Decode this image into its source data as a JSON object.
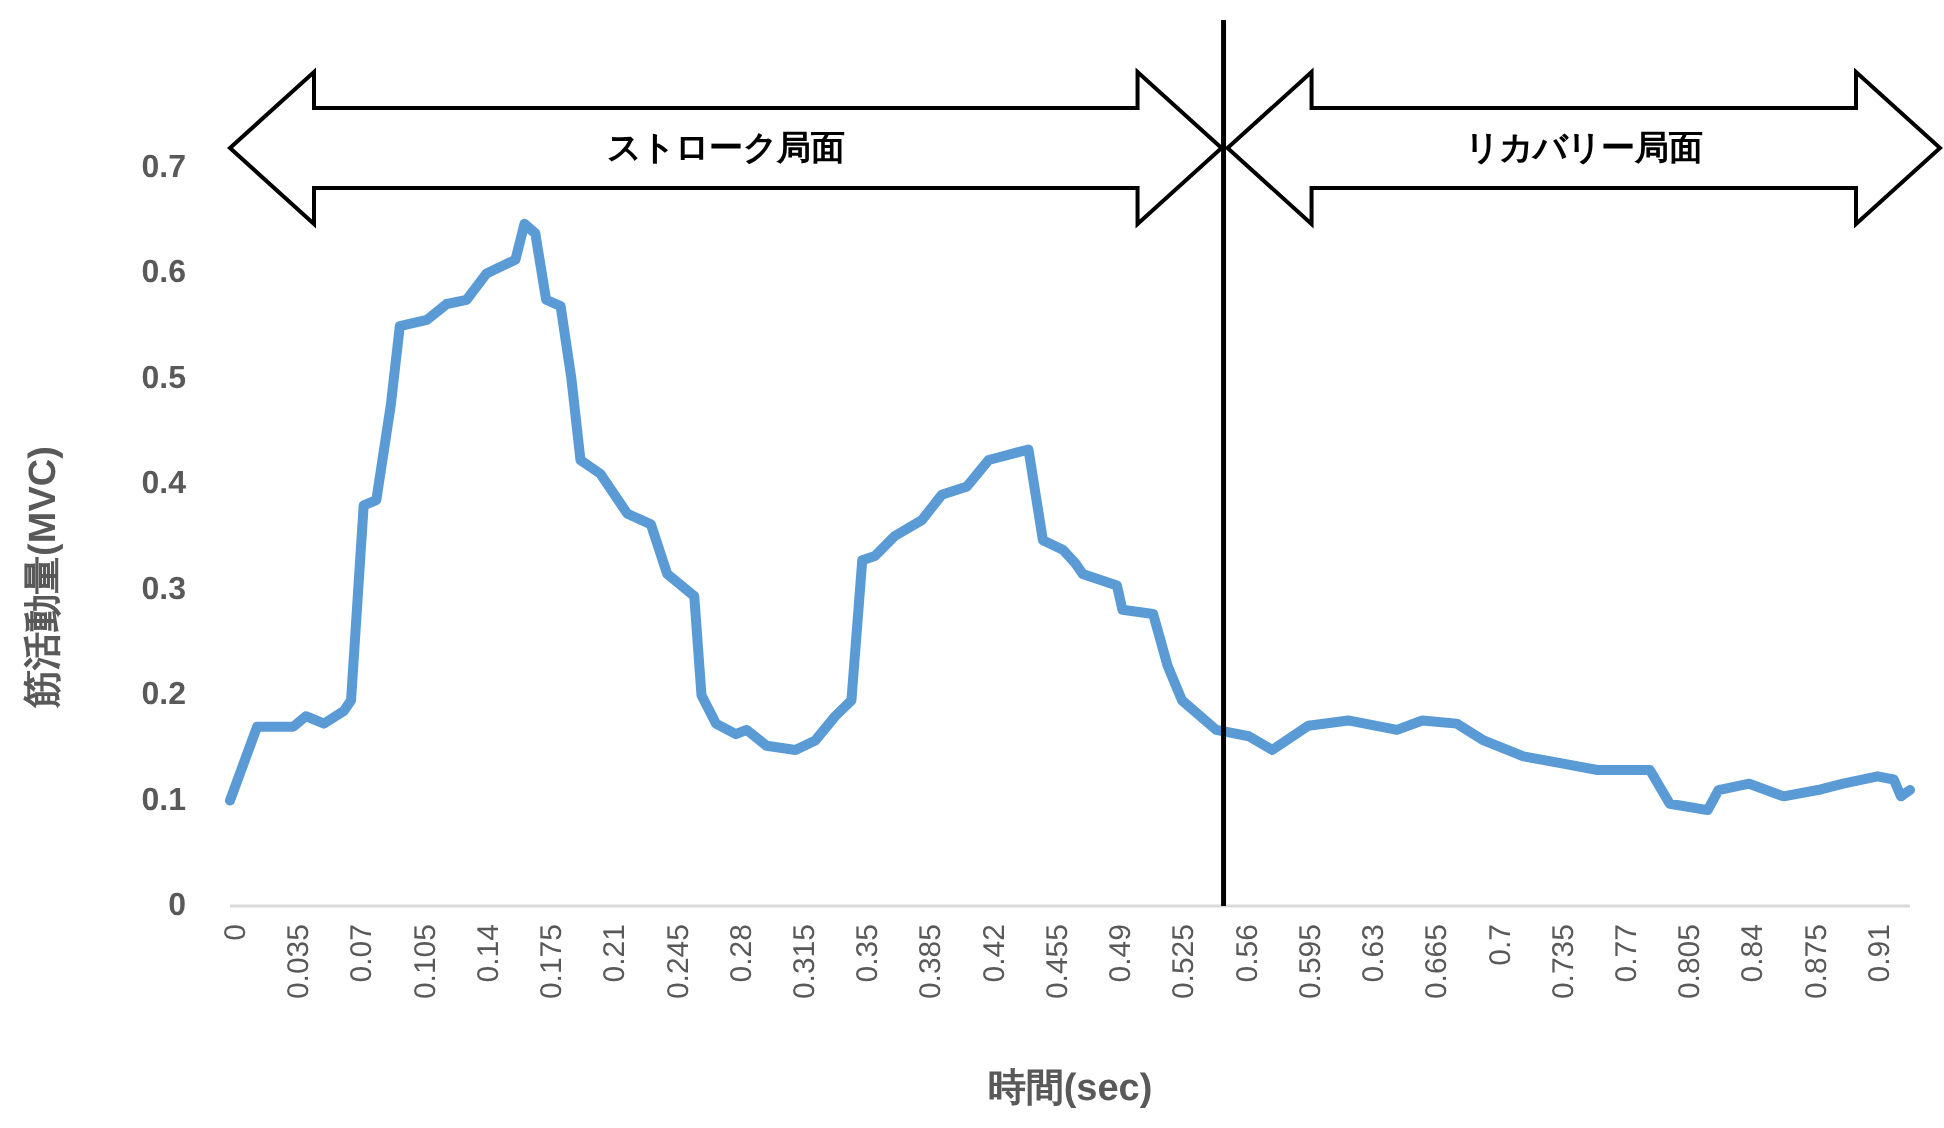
{
  "chart_data": {
    "type": "line",
    "xlabel": "時間(sec)",
    "ylabel": "筋活動量(MVC)",
    "annotations": [
      "ストローク局面",
      "リカバリー局面"
    ],
    "xlim": [
      0,
      0.93
    ],
    "ylim": [
      0,
      0.7
    ],
    "xticks": [
      0,
      0.035,
      0.07,
      0.105,
      0.14,
      0.175,
      0.21,
      0.245,
      0.28,
      0.315,
      0.35,
      0.385,
      0.42,
      0.455,
      0.49,
      0.525,
      0.56,
      0.595,
      0.63,
      0.665,
      0.7,
      0.735,
      0.77,
      0.805,
      0.84,
      0.875,
      0.91
    ],
    "yticks": [
      0,
      0.1,
      0.2,
      0.3,
      0.4,
      0.5,
      0.6,
      0.7
    ],
    "grid": false,
    "marker": "none",
    "line_style": "solid",
    "ref_lines": [
      {
        "axis": "x",
        "value": 0.55,
        "color": "#000000"
      }
    ],
    "series": [
      {
        "color": "#5b9bd5",
        "x": [
          0,
          0.015,
          0.035,
          0.042,
          0.052,
          0.063,
          0.067,
          0.074,
          0.081,
          0.089,
          0.094,
          0.109,
          0.12,
          0.131,
          0.142,
          0.158,
          0.163,
          0.169,
          0.175,
          0.183,
          0.189,
          0.194,
          0.205,
          0.22,
          0.233,
          0.242,
          0.257,
          0.261,
          0.269,
          0.28,
          0.286,
          0.297,
          0.313,
          0.324,
          0.335,
          0.344,
          0.35,
          0.357,
          0.368,
          0.383,
          0.394,
          0.408,
          0.42,
          0.442,
          0.45,
          0.461,
          0.468,
          0.472,
          0.491,
          0.494,
          0.511,
          0.519,
          0.527,
          0.546,
          0.564,
          0.577,
          0.597,
          0.619,
          0.646,
          0.66,
          0.679,
          0.694,
          0.716,
          0.738,
          0.757,
          0.786,
          0.797,
          0.818,
          0.824,
          0.841,
          0.86,
          0.879,
          0.893,
          0.912,
          0.921,
          0.925,
          0.93
        ],
        "values": [
          0.1,
          0.17,
          0.17,
          0.18,
          0.173,
          0.185,
          0.195,
          0.38,
          0.385,
          0.475,
          0.55,
          0.556,
          0.571,
          0.575,
          0.6,
          0.613,
          0.647,
          0.638,
          0.575,
          0.569,
          0.5,
          0.423,
          0.41,
          0.372,
          0.362,
          0.315,
          0.294,
          0.2,
          0.173,
          0.163,
          0.167,
          0.152,
          0.148,
          0.157,
          0.18,
          0.195,
          0.328,
          0.332,
          0.351,
          0.366,
          0.39,
          0.398,
          0.423,
          0.433,
          0.347,
          0.338,
          0.325,
          0.315,
          0.304,
          0.281,
          0.277,
          0.228,
          0.195,
          0.167,
          0.161,
          0.148,
          0.171,
          0.176,
          0.167,
          0.176,
          0.173,
          0.157,
          0.142,
          0.135,
          0.129,
          0.129,
          0.097,
          0.091,
          0.11,
          0.116,
          0.104,
          0.11,
          0.116,
          0.123,
          0.12,
          0.104,
          0.11
        ]
      }
    ]
  }
}
